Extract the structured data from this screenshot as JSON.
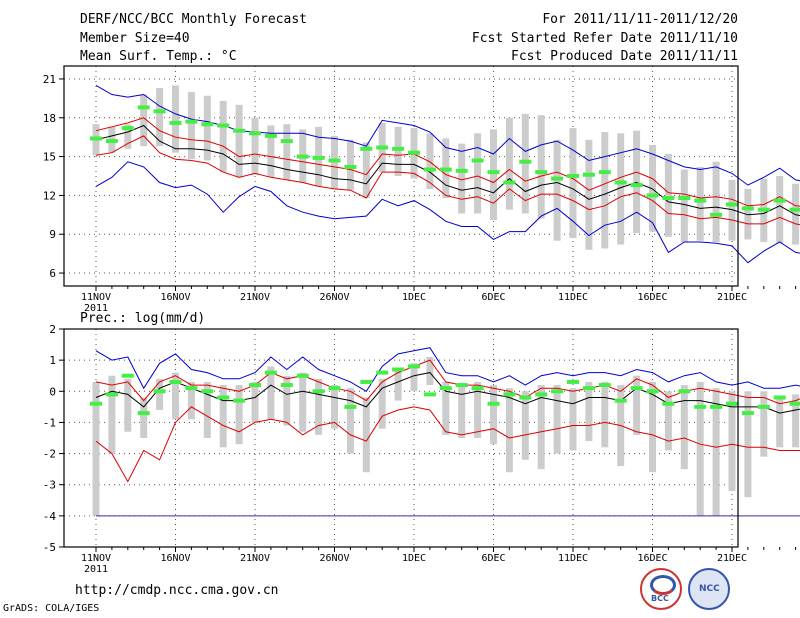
{
  "header": {
    "title": "DERF/NCC/BCC Monthly Forecast",
    "member_size": "Member Size=40",
    "variable": "Mean Surf. Temp.: °C",
    "period": "For 2011/11/11-2011/12/20",
    "refer_date": "Fcst Started Refer Date 2011/11/10",
    "produced_date": "Fcst Produced Date 2011/11/11"
  },
  "footer": {
    "url": "http://cmdp.ncc.cma.gov.cn",
    "grads": "GrADS: COLA/IGES",
    "logo1": "BCC",
    "logo2": "NCC"
  },
  "colors": {
    "max": "#0000cc",
    "sd": "#dd0000",
    "mean": "#000000",
    "obs": "#44ee44",
    "box": "#cccccc",
    "floor": "#3333aa"
  },
  "chart_data": [
    {
      "type": "box-line",
      "title": "Mean Surf. Temp.: °C",
      "x_labels": [
        "11NOV",
        "16NOV",
        "21NOV",
        "26NOV",
        "1DEC",
        "6DEC",
        "11DEC",
        "16DEC",
        "21DEC"
      ],
      "x_sublabel": "2011",
      "ylim": [
        5,
        22
      ],
      "yticks": [
        6,
        9,
        12,
        15,
        18,
        21
      ],
      "series": {
        "mean": [
          16.3,
          16.6,
          16.9,
          17.4,
          16.2,
          15.6,
          15.6,
          15.5,
          15.2,
          14.4,
          14.5,
          14.3,
          14.0,
          13.8,
          13.6,
          13.3,
          13.2,
          12.9,
          14.5,
          14.4,
          14.4,
          13.8,
          12.8,
          12.4,
          12.6,
          12.2,
          13.3,
          12.3,
          12.8,
          13.0,
          12.5,
          11.7,
          12.1,
          12.6,
          13.0,
          12.5,
          11.5,
          11.3,
          11.0,
          11.1,
          10.9,
          10.5,
          10.6,
          11.2,
          10.5,
          10.3,
          10.4,
          11.1,
          10.2
        ],
        "upper_sd": [
          17.0,
          17.3,
          17.6,
          18.0,
          17.0,
          16.5,
          16.3,
          16.2,
          15.8,
          15.0,
          15.2,
          15.0,
          14.8,
          14.6,
          14.4,
          14.2,
          14.0,
          13.6,
          15.2,
          15.1,
          15.2,
          14.6,
          13.6,
          13.2,
          13.5,
          13.0,
          14.0,
          13.1,
          13.5,
          13.8,
          13.3,
          12.4,
          12.9,
          13.4,
          13.8,
          13.3,
          12.2,
          12.1,
          11.8,
          11.9,
          11.7,
          11.2,
          11.3,
          11.9,
          11.2,
          11.1,
          11.2,
          11.9,
          11.0
        ],
        "lower_sd": [
          15.1,
          15.3,
          16.0,
          16.6,
          15.3,
          14.8,
          14.7,
          14.5,
          13.8,
          13.4,
          13.7,
          13.4,
          13.2,
          13.0,
          12.7,
          12.5,
          12.4,
          11.8,
          13.8,
          13.8,
          13.7,
          13.0,
          12.0,
          11.7,
          11.9,
          11.4,
          12.5,
          11.6,
          12.1,
          12.1,
          11.6,
          10.9,
          11.2,
          11.9,
          12.2,
          11.6,
          10.6,
          10.5,
          10.2,
          10.3,
          10.1,
          9.8,
          9.8,
          10.3,
          9.8,
          9.6,
          9.6,
          10.4,
          9.0
        ],
        "max": [
          20.5,
          19.8,
          19.6,
          19.8,
          18.9,
          18.3,
          17.9,
          17.7,
          17.4,
          17.0,
          16.9,
          16.8,
          16.8,
          16.8,
          16.5,
          16.4,
          16.2,
          15.8,
          17.8,
          17.6,
          17.4,
          16.9,
          15.7,
          15.4,
          15.7,
          15.2,
          16.4,
          15.4,
          15.9,
          16.2,
          15.5,
          14.7,
          15.0,
          15.3,
          15.6,
          15.2,
          14.7,
          14.2,
          14.0,
          14.2,
          13.7,
          12.8,
          13.4,
          14.1,
          13.2,
          13.0,
          13.2,
          14.0,
          12.7
        ],
        "min": [
          12.7,
          13.4,
          14.6,
          14.2,
          13.0,
          12.6,
          12.8,
          12.1,
          10.7,
          11.9,
          12.7,
          12.3,
          11.2,
          10.7,
          10.4,
          10.2,
          10.3,
          10.4,
          11.7,
          11.2,
          11.6,
          10.9,
          10.0,
          9.6,
          9.6,
          8.6,
          9.2,
          9.2,
          10.4,
          11.0,
          10.0,
          8.9,
          9.7,
          10.0,
          10.7,
          9.9,
          7.6,
          8.4,
          8.4,
          8.3,
          8.1,
          6.8,
          7.7,
          8.4,
          7.6,
          7.4,
          7.5,
          8.0,
          6.9
        ],
        "box_top": [
          17.5,
          17.3,
          17.5,
          19.8,
          20.3,
          20.5,
          20.0,
          19.7,
          19.3,
          19.0,
          18.0,
          17.4,
          17.5,
          17.1,
          17.3,
          16.6,
          16.3,
          16.1,
          17.6,
          17.3,
          17.2,
          16.8,
          16.4,
          16.0,
          16.8,
          17.1,
          18.0,
          18.3,
          18.2,
          16.3,
          17.2,
          16.3,
          16.9,
          16.8,
          17.0,
          15.9,
          15.2,
          14.0,
          14.2,
          14.6,
          13.2,
          12.5,
          13.3,
          13.5,
          12.9,
          13.4,
          14.9,
          15.8,
          12.6
        ],
        "box_bottom": [
          15.1,
          15.3,
          15.6,
          15.8,
          15.8,
          15.3,
          14.8,
          14.7,
          13.8,
          13.4,
          13.6,
          13.4,
          13.2,
          13.0,
          12.7,
          12.5,
          12.4,
          11.8,
          13.8,
          13.5,
          13.3,
          12.5,
          11.8,
          10.6,
          10.6,
          10.1,
          10.9,
          10.6,
          10.2,
          8.5,
          8.7,
          7.8,
          7.9,
          8.2,
          9.1,
          9.2,
          8.8,
          8.4,
          8.5,
          8.4,
          8.5,
          8.6,
          8.4,
          8.3,
          8.2,
          8.1,
          8.3,
          8.0,
          8.0
        ],
        "obs": [
          16.4,
          16.2,
          17.2,
          18.8,
          18.5,
          17.6,
          17.7,
          17.5,
          17.4,
          17.0,
          16.8,
          16.6,
          16.2,
          15.0,
          14.9,
          14.7,
          14.2,
          15.6,
          15.7,
          15.6,
          15.3,
          14.0,
          14.0,
          13.9,
          14.7,
          13.8,
          13.0,
          14.6,
          13.8,
          13.3,
          13.5,
          13.6,
          13.8,
          13.0,
          12.8,
          12.0,
          11.8,
          11.8,
          11.6,
          10.5,
          11.3,
          11.0,
          10.9,
          11.6,
          10.9,
          10.9,
          10.8,
          12.1,
          10.4
        ]
      }
    },
    {
      "type": "box-line",
      "title": "Prec.: log(mm/d)",
      "x_labels": [
        "11NOV",
        "16NOV",
        "21NOV",
        "26NOV",
        "1DEC",
        "6DEC",
        "11DEC",
        "16DEC",
        "21DEC"
      ],
      "x_sublabel": "2011",
      "ylim": [
        -5,
        2
      ],
      "yticks": [
        -5,
        -4,
        -3,
        -2,
        -1,
        0,
        1,
        2
      ],
      "floor": -4,
      "series": {
        "mean": [
          -0.2,
          0.0,
          -0.1,
          -0.5,
          0.1,
          0.3,
          0.1,
          -0.1,
          -0.3,
          -0.3,
          -0.2,
          0.2,
          -0.1,
          0.0,
          -0.1,
          -0.2,
          -0.3,
          -0.5,
          0.1,
          0.3,
          0.5,
          0.6,
          0.0,
          -0.1,
          0.0,
          -0.1,
          -0.2,
          -0.4,
          -0.2,
          -0.3,
          -0.4,
          -0.2,
          -0.2,
          -0.3,
          0.1,
          -0.1,
          -0.4,
          -0.3,
          -0.3,
          -0.4,
          -0.5,
          -0.5,
          -0.5,
          -0.7,
          -0.6,
          -0.5,
          -0.5,
          -0.6,
          -0.7
        ],
        "upper_sd": [
          0.3,
          0.2,
          0.3,
          -0.3,
          0.3,
          0.5,
          0.2,
          0.2,
          0.1,
          0.0,
          0.2,
          0.6,
          0.4,
          0.5,
          0.3,
          0.1,
          0.0,
          -0.3,
          0.3,
          0.6,
          0.8,
          1.0,
          0.3,
          0.2,
          0.2,
          0.1,
          0.0,
          -0.2,
          0.1,
          0.1,
          0.0,
          0.1,
          0.2,
          0.0,
          0.4,
          0.2,
          -0.2,
          0.0,
          0.1,
          0.0,
          -0.1,
          -0.2,
          -0.2,
          -0.4,
          -0.3,
          -0.1,
          -0.2,
          -0.3,
          -0.4
        ],
        "lower_sd": [
          -1.6,
          -2.0,
          -2.9,
          -1.9,
          -2.2,
          -1.0,
          -0.5,
          -0.8,
          -1.1,
          -1.3,
          -1.0,
          -0.9,
          -1.0,
          -1.4,
          -1.1,
          -1.0,
          -1.4,
          -1.6,
          -0.8,
          -0.6,
          -0.5,
          -0.6,
          -1.3,
          -1.4,
          -1.3,
          -1.2,
          -1.5,
          -1.4,
          -1.3,
          -1.2,
          -1.1,
          -1.1,
          -1.0,
          -1.1,
          -1.3,
          -1.4,
          -1.6,
          -1.5,
          -1.7,
          -1.8,
          -1.7,
          -1.8,
          -1.8,
          -1.9,
          -1.9,
          -1.9,
          -1.6,
          -1.7,
          -1.8
        ],
        "max": [
          1.3,
          1.0,
          1.1,
          0.1,
          0.9,
          1.2,
          0.7,
          0.6,
          0.4,
          0.4,
          0.6,
          1.1,
          0.7,
          1.1,
          0.7,
          0.5,
          0.3,
          0.0,
          0.8,
          1.2,
          1.3,
          1.4,
          0.6,
          0.5,
          0.5,
          0.3,
          0.5,
          0.2,
          0.5,
          0.6,
          0.5,
          0.6,
          0.6,
          0.5,
          0.7,
          0.6,
          0.3,
          0.5,
          0.6,
          0.3,
          0.2,
          0.3,
          0.1,
          0.1,
          0.2,
          0.1,
          0.3,
          0.4,
          0.3
        ],
        "box_top": [
          0.3,
          0.5,
          0.4,
          -0.2,
          0.4,
          0.6,
          0.3,
          0.3,
          0.2,
          0.2,
          0.3,
          0.8,
          0.5,
          0.6,
          0.4,
          0.2,
          0.1,
          -0.2,
          0.4,
          0.7,
          0.9,
          1.1,
          0.3,
          0.2,
          0.3,
          0.2,
          0.1,
          0.0,
          0.2,
          0.2,
          0.1,
          0.3,
          0.3,
          0.2,
          0.5,
          0.3,
          0.0,
          0.2,
          0.3,
          0.1,
          0.0,
          0.0,
          0.0,
          -0.2,
          -0.1,
          0.0,
          0.0,
          -0.1,
          -0.2
        ],
        "box_bottom": [
          -4.0,
          -2.0,
          -1.3,
          -1.5,
          -0.6,
          -0.9,
          -0.9,
          -1.5,
          -1.8,
          -1.7,
          -1.0,
          -0.9,
          -1.1,
          -1.3,
          -1.4,
          -1.2,
          -2.0,
          -2.6,
          -1.2,
          -0.3,
          0.0,
          0.2,
          -1.4,
          -1.5,
          -1.5,
          -1.7,
          -2.6,
          -2.2,
          -2.5,
          -2.0,
          -1.9,
          -1.6,
          -1.8,
          -2.4,
          -1.4,
          -2.6,
          -1.9,
          -2.5,
          -4.0,
          -4.0,
          -3.2,
          -3.4,
          -2.1,
          -1.8,
          -1.8,
          -2.4,
          -2.5,
          -2.4,
          -3.7
        ],
        "obs": [
          -0.4,
          -0.1,
          0.5,
          -0.7,
          0.0,
          0.3,
          0.1,
          0.0,
          -0.2,
          -0.3,
          0.2,
          0.6,
          0.2,
          0.5,
          0.0,
          0.1,
          -0.5,
          0.3,
          0.6,
          0.7,
          0.8,
          -0.1,
          0.1,
          0.2,
          0.1,
          -0.4,
          -0.1,
          -0.2,
          -0.1,
          0.0,
          0.3,
          0.1,
          0.2,
          -0.3,
          0.1,
          0.0,
          -0.4,
          0.0,
          -0.5,
          -0.5,
          -0.4,
          -0.7,
          -0.5,
          -0.2,
          -0.4,
          -0.4,
          -0.5,
          -0.5,
          -0.4
        ]
      }
    }
  ]
}
